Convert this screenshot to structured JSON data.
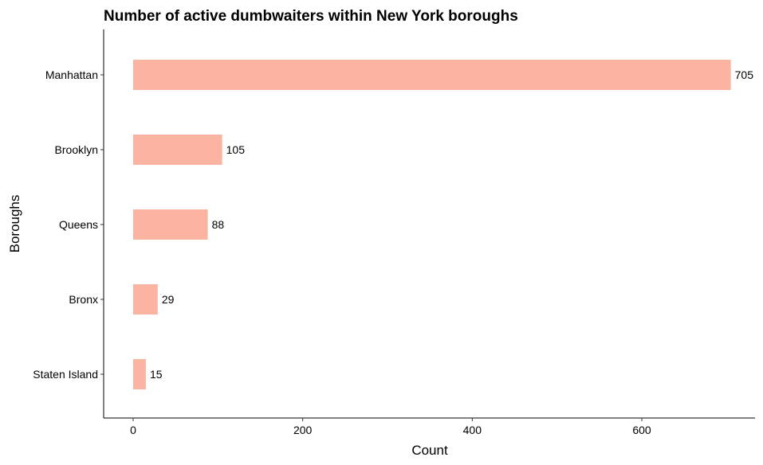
{
  "chart_data": {
    "type": "bar",
    "orientation": "horizontal",
    "title": "Number of active dumbwaiters within New York boroughs",
    "xlabel": "Count",
    "ylabel": "Boroughs",
    "categories": [
      "Manhattan",
      "Brooklyn",
      "Queens",
      "Bronx",
      "Staten Island"
    ],
    "values": [
      705,
      105,
      88,
      29,
      15
    ],
    "data_labels": [
      "705",
      "105",
      "88",
      "29",
      "15"
    ],
    "x_ticks": [
      0,
      200,
      400,
      600
    ],
    "x_tick_labels": [
      "0",
      "200",
      "400",
      "600"
    ],
    "xlim": [
      -35,
      740
    ],
    "grid": false,
    "legend": "none",
    "bar_color": "#FAB4A1"
  }
}
